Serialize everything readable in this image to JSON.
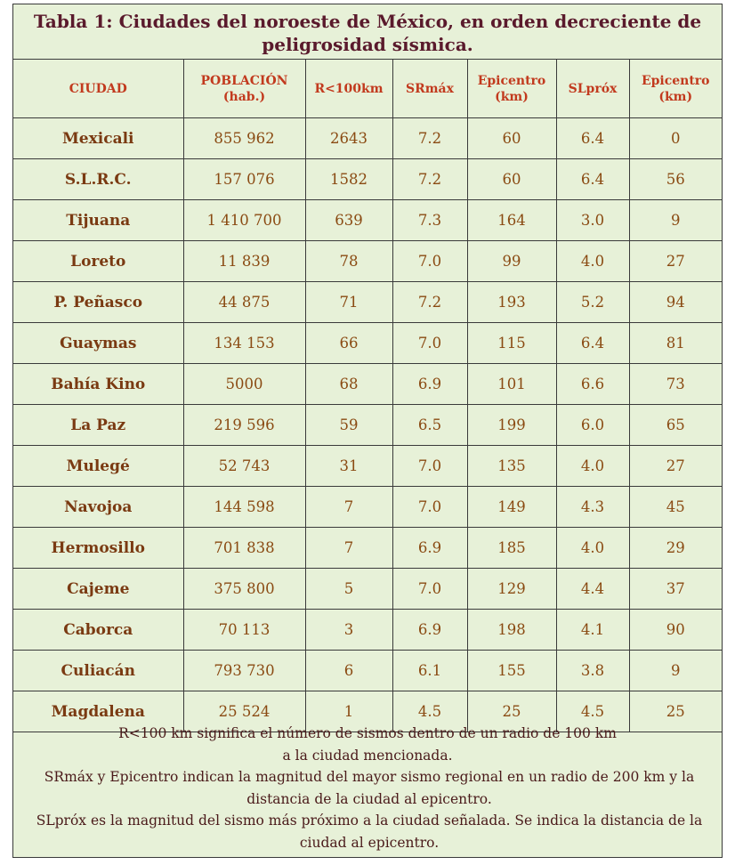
{
  "title": "Tabla 1: Ciudades del noroeste de México, en orden decreciente de peligrosidad sísmica.",
  "headers": [
    {
      "line1": "CIUDAD",
      "line2": ""
    },
    {
      "line1": "POBLACIÓN",
      "line2": "(hab.)"
    },
    {
      "line1": "R<100km",
      "line2": ""
    },
    {
      "line1": "SRmáx",
      "line2": ""
    },
    {
      "line1": "Epicentro",
      "line2": "(km)"
    },
    {
      "line1": "SLpróx",
      "line2": ""
    },
    {
      "line1": "Epicentro",
      "line2": "(km)"
    }
  ],
  "rows": [
    [
      "Mexicali",
      "855 962",
      "2643",
      "7.2",
      "60",
      "6.4",
      "0"
    ],
    [
      "S.L.R.C.",
      "157 076",
      "1582",
      "7.2",
      "60",
      "6.4",
      "56"
    ],
    [
      "Tijuana",
      "1 410 700",
      "639",
      "7.3",
      "164",
      "3.0",
      "9"
    ],
    [
      "Loreto",
      "11 839",
      "78",
      "7.0",
      "99",
      "4.0",
      "27"
    ],
    [
      "P. Peñasco",
      "44 875",
      "71",
      "7.2",
      "193",
      "5.2",
      "94"
    ],
    [
      "Guaymas",
      "134 153",
      "66",
      "7.0",
      "115",
      "6.4",
      "81"
    ],
    [
      "Bahía Kino",
      "5000",
      "68",
      "6.9",
      "101",
      "6.6",
      "73"
    ],
    [
      "La Paz",
      "219 596",
      "59",
      "6.5",
      "199",
      "6.0",
      "65"
    ],
    [
      "Mulegé",
      "52 743",
      "31",
      "7.0",
      "135",
      "4.0",
      "27"
    ],
    [
      "Navojoa",
      "144 598",
      "7",
      "7.0",
      "149",
      "4.3",
      "45"
    ],
    [
      "Hermosillo",
      "701 838",
      "7",
      "6.9",
      "185",
      "4.0",
      "29"
    ],
    [
      "Cajeme",
      "375 800",
      "5",
      "7.0",
      "129",
      "4.4",
      "37"
    ],
    [
      "Caborca",
      "70 113",
      "3",
      "6.9",
      "198",
      "4.1",
      "90"
    ],
    [
      "Culiacán",
      "793 730",
      "6",
      "6.1",
      "155",
      "3.8",
      "9"
    ],
    [
      "Magdalena",
      "25 524",
      "1",
      "4.5",
      "25",
      "4.5",
      "25"
    ]
  ],
  "notes": [
    "R<100 km significa el número de sismos dentro de un radio de 100 km a la ciudad mencionada.",
    "SRmáx y Epicentro indican la magnitud del mayor sismo regional en un radio de 200 km y la distancia de la ciudad al epicentro.",
    "SLpróx es la magnitud del sismo más próximo a la ciudad señalada. Se indica la distancia de la ciudad al epicentro."
  ]
}
